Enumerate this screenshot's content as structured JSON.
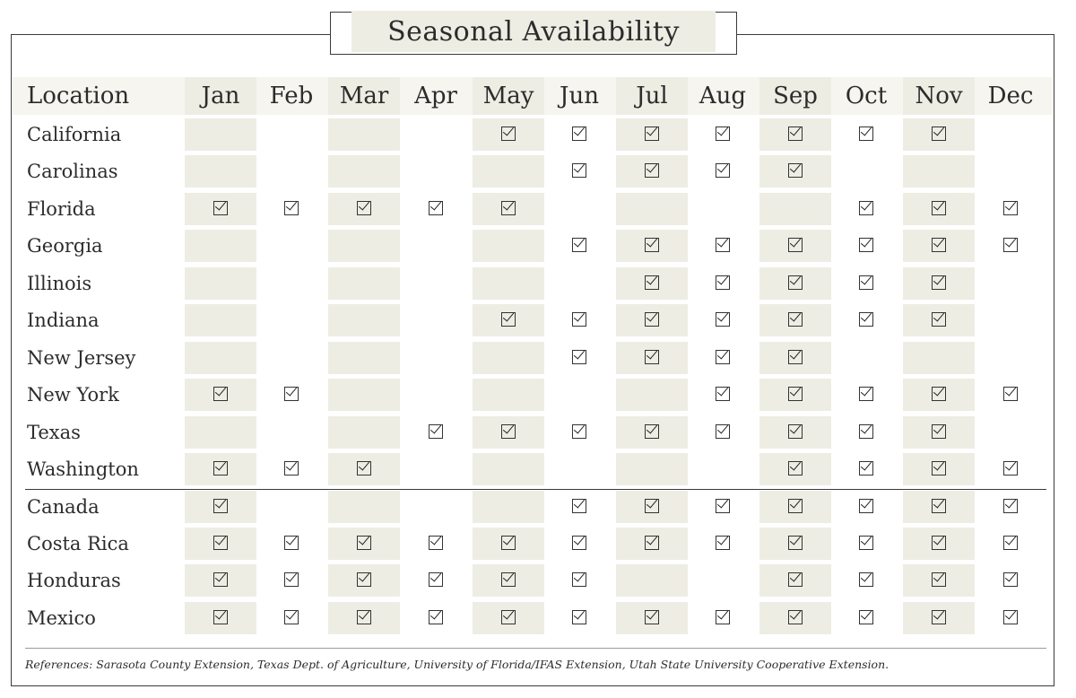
{
  "title": "Seasonal Availability",
  "header": {
    "location_label": "Location",
    "months": [
      "Jan",
      "Feb",
      "Mar",
      "Apr",
      "May",
      "Jun",
      "Jul",
      "Aug",
      "Sep",
      "Oct",
      "Nov",
      "Dec"
    ]
  },
  "rows": [
    {
      "location": "California",
      "available": [
        0,
        0,
        0,
        0,
        1,
        1,
        1,
        1,
        1,
        1,
        1,
        0
      ]
    },
    {
      "location": "Carolinas",
      "available": [
        0,
        0,
        0,
        0,
        0,
        1,
        1,
        1,
        1,
        0,
        0,
        0
      ]
    },
    {
      "location": "Florida",
      "available": [
        1,
        1,
        1,
        1,
        1,
        0,
        0,
        0,
        0,
        1,
        1,
        1
      ]
    },
    {
      "location": "Georgia",
      "available": [
        0,
        0,
        0,
        0,
        0,
        1,
        1,
        1,
        1,
        1,
        1,
        1
      ]
    },
    {
      "location": "Illinois",
      "available": [
        0,
        0,
        0,
        0,
        0,
        0,
        1,
        1,
        1,
        1,
        1,
        0
      ]
    },
    {
      "location": "Indiana",
      "available": [
        0,
        0,
        0,
        0,
        1,
        1,
        1,
        1,
        1,
        1,
        1,
        0
      ]
    },
    {
      "location": "New Jersey",
      "available": [
        0,
        0,
        0,
        0,
        0,
        1,
        1,
        1,
        1,
        0,
        0,
        0
      ]
    },
    {
      "location": "New York",
      "available": [
        1,
        1,
        0,
        0,
        0,
        0,
        0,
        1,
        1,
        1,
        1,
        1
      ]
    },
    {
      "location": "Texas",
      "available": [
        0,
        0,
        0,
        1,
        1,
        1,
        1,
        1,
        1,
        1,
        1,
        0
      ]
    },
    {
      "location": "Washington",
      "available": [
        1,
        1,
        1,
        0,
        0,
        0,
        0,
        0,
        1,
        1,
        1,
        1
      ]
    },
    {
      "location": "Canada",
      "available": [
        1,
        0,
        0,
        0,
        0,
        1,
        1,
        1,
        1,
        1,
        1,
        1
      ]
    },
    {
      "location": "Costa Rica",
      "available": [
        1,
        1,
        1,
        1,
        1,
        1,
        1,
        1,
        1,
        1,
        1,
        1
      ]
    },
    {
      "location": "Honduras",
      "available": [
        1,
        1,
        1,
        1,
        1,
        1,
        0,
        0,
        1,
        1,
        1,
        1
      ]
    },
    {
      "location": "Mexico",
      "available": [
        1,
        1,
        1,
        1,
        1,
        1,
        1,
        1,
        1,
        1,
        1,
        1
      ]
    }
  ],
  "references": "References: Sarasota County Extension, Texas Dept. of Agriculture, University of Florida/IFAS Extension, Utah State University Cooperative Extension.",
  "colors": {
    "shade": "#eeede3",
    "header_band": "#f6f5ef",
    "border": "#3a3a3a"
  },
  "icons": {
    "available": "checkbox-checked-icon"
  }
}
